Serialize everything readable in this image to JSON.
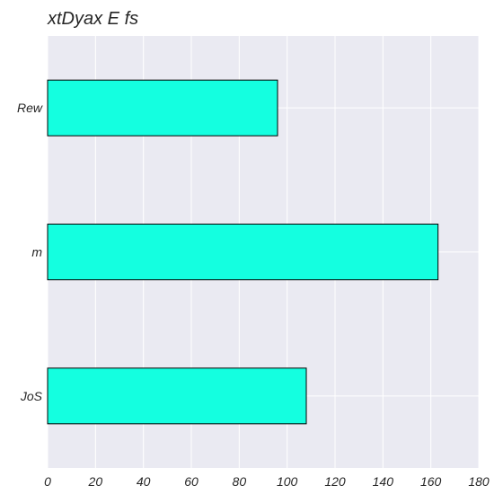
{
  "chart_data": {
    "type": "bar",
    "orientation": "horizontal",
    "title": "xtDyax E fs",
    "xlabel": "",
    "ylabel": "",
    "categories": [
      "Rew",
      "m",
      "JoS"
    ],
    "values": [
      96,
      163,
      108
    ],
    "xlim": [
      0,
      180
    ],
    "xticks": [
      0,
      20,
      40,
      60,
      80,
      100,
      120,
      140,
      160,
      180
    ],
    "grid": true,
    "legend": "none",
    "colors": {
      "bar": "#14ffe0",
      "bar_edge": "#000000",
      "background": "#eaeaf2",
      "grid": "#ffffff",
      "text": "#262626"
    }
  }
}
